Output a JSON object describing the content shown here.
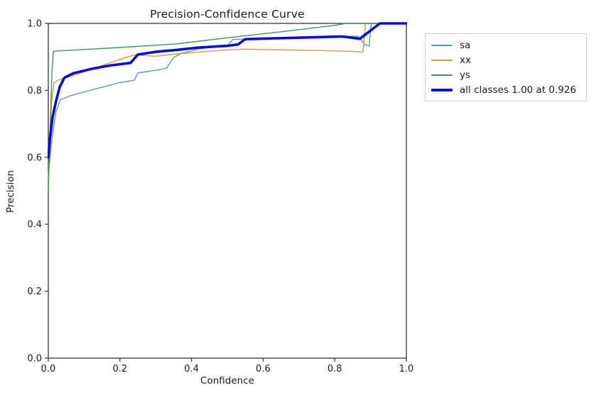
{
  "figure": {
    "title": "Precision-Confidence Curve",
    "xlabel": "Confidence",
    "ylabel": "Precision"
  },
  "legend": {
    "items": [
      {
        "label": "sa",
        "color": "#5f97af",
        "thick": false
      },
      {
        "label": "xx",
        "color": "#cd9a4d",
        "thick": false
      },
      {
        "label": "ys",
        "color": "#44905a",
        "thick": false
      },
      {
        "label": "all classes 1.00 at 0.926",
        "color": "#0b0bd2",
        "thick": true
      }
    ]
  },
  "chart_data": {
    "type": "line",
    "title": "Precision-Confidence Curve",
    "xlabel": "Confidence",
    "ylabel": "Precision",
    "xlim": [
      0.0,
      1.0
    ],
    "ylim": [
      0.0,
      1.0
    ],
    "xticks": [
      "0.0",
      "0.2",
      "0.4",
      "0.6",
      "0.8",
      "1.0"
    ],
    "yticks": [
      "0.0",
      "0.2",
      "0.4",
      "0.6",
      "0.8",
      "1.0"
    ],
    "grid": false,
    "legend_position": "outside upper right",
    "series": [
      {
        "name": "sa",
        "color": "#5f97af",
        "width": 1.4,
        "points": [
          [
            0.0,
            0.55
          ],
          [
            0.01,
            0.65
          ],
          [
            0.021,
            0.735
          ],
          [
            0.034,
            0.772
          ],
          [
            0.06,
            0.783
          ],
          [
            0.096,
            0.794
          ],
          [
            0.117,
            0.8
          ],
          [
            0.16,
            0.812
          ],
          [
            0.2,
            0.823
          ],
          [
            0.24,
            0.83
          ],
          [
            0.25,
            0.852
          ],
          [
            0.3,
            0.86
          ],
          [
            0.33,
            0.866
          ],
          [
            0.35,
            0.898
          ],
          [
            0.37,
            0.91
          ],
          [
            0.42,
            0.924
          ],
          [
            0.5,
            0.933
          ],
          [
            0.515,
            0.952
          ],
          [
            0.6,
            0.955
          ],
          [
            0.7,
            0.958
          ],
          [
            0.8,
            0.96
          ],
          [
            0.865,
            0.962
          ],
          [
            0.885,
            0.936
          ],
          [
            0.896,
            0.932
          ],
          [
            0.902,
            1.0
          ],
          [
            1.0,
            1.0
          ]
        ]
      },
      {
        "name": "xx",
        "color": "#cd9a4d",
        "width": 1.4,
        "points": [
          [
            0.0,
            0.53
          ],
          [
            0.006,
            0.7
          ],
          [
            0.01,
            0.777
          ],
          [
            0.016,
            0.823
          ],
          [
            0.03,
            0.832
          ],
          [
            0.06,
            0.841
          ],
          [
            0.1,
            0.855
          ],
          [
            0.163,
            0.879
          ],
          [
            0.21,
            0.896
          ],
          [
            0.24,
            0.906
          ],
          [
            0.3,
            0.902
          ],
          [
            0.36,
            0.909
          ],
          [
            0.45,
            0.917
          ],
          [
            0.52,
            0.922
          ],
          [
            0.55,
            0.923
          ],
          [
            0.65,
            0.921
          ],
          [
            0.75,
            0.919
          ],
          [
            0.86,
            0.916
          ],
          [
            0.879,
            0.914
          ],
          [
            0.886,
            1.0
          ],
          [
            1.0,
            1.0
          ]
        ]
      },
      {
        "name": "ys",
        "color": "#44905a",
        "width": 1.4,
        "points": [
          [
            0.0,
            0.5
          ],
          [
            0.01,
            0.85
          ],
          [
            0.014,
            0.917
          ],
          [
            0.1,
            0.922
          ],
          [
            0.2,
            0.928
          ],
          [
            0.36,
            0.939
          ],
          [
            0.5,
            0.957
          ],
          [
            0.65,
            0.975
          ],
          [
            0.8,
            0.994
          ],
          [
            0.83,
            1.0
          ],
          [
            1.0,
            1.0
          ]
        ]
      },
      {
        "name": "all classes 1.00 at 0.926",
        "color": "#0b0bd2",
        "width": 3.6,
        "points": [
          [
            0.0,
            0.6
          ],
          [
            0.005,
            0.66
          ],
          [
            0.012,
            0.72
          ],
          [
            0.022,
            0.77
          ],
          [
            0.032,
            0.81
          ],
          [
            0.045,
            0.838
          ],
          [
            0.07,
            0.851
          ],
          [
            0.12,
            0.864
          ],
          [
            0.17,
            0.874
          ],
          [
            0.23,
            0.882
          ],
          [
            0.25,
            0.907
          ],
          [
            0.3,
            0.915
          ],
          [
            0.36,
            0.921
          ],
          [
            0.42,
            0.928
          ],
          [
            0.5,
            0.933
          ],
          [
            0.53,
            0.937
          ],
          [
            0.55,
            0.953
          ],
          [
            0.65,
            0.956
          ],
          [
            0.75,
            0.959
          ],
          [
            0.82,
            0.961
          ],
          [
            0.85,
            0.957
          ],
          [
            0.87,
            0.954
          ],
          [
            0.926,
            1.0
          ],
          [
            1.0,
            1.0
          ]
        ]
      }
    ]
  }
}
